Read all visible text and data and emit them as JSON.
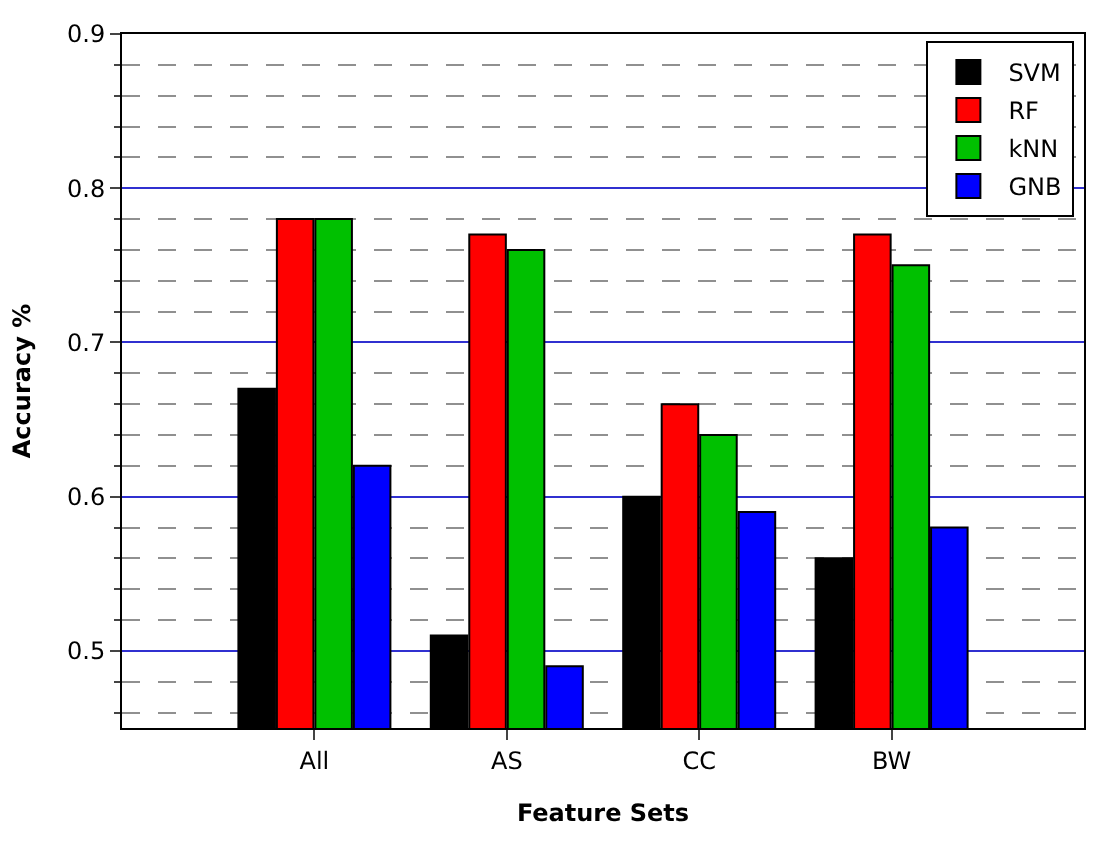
{
  "chart_data": {
    "type": "bar",
    "xlabel": "Feature Sets",
    "ylabel": "Accuracy %",
    "categories": [
      "All",
      "AS",
      "CC",
      "BW"
    ],
    "series": [
      {
        "name": "SVM",
        "color": "#000000",
        "values": [
          0.67,
          0.51,
          0.6,
          0.56
        ]
      },
      {
        "name": "RF",
        "color": "#ff0000",
        "values": [
          0.78,
          0.77,
          0.66,
          0.77
        ]
      },
      {
        "name": "kNN",
        "color": "#00c000",
        "values": [
          0.78,
          0.76,
          0.64,
          0.75
        ]
      },
      {
        "name": "GNB",
        "color": "#0000ff",
        "values": [
          0.62,
          0.49,
          0.59,
          0.58
        ]
      }
    ],
    "ylim": [
      0.45,
      0.9
    ],
    "yticks": [
      0.5,
      0.6,
      0.7,
      0.8,
      0.9
    ],
    "grid": "y",
    "legend": "top right"
  }
}
